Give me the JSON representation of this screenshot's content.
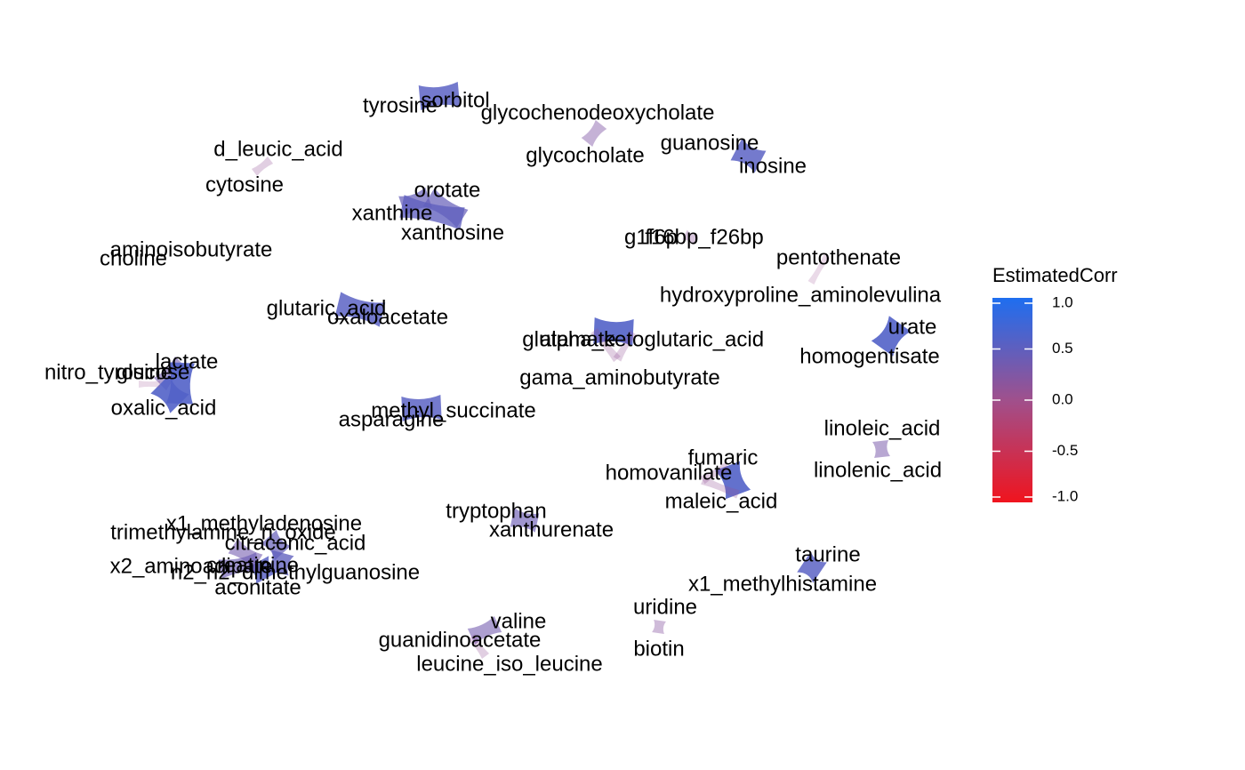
{
  "chart_data": {
    "type": "network",
    "legend": {
      "title": "EstimatedCorr",
      "placement": "right",
      "range": [
        -1.0,
        1.0
      ],
      "ticks": [
        {
          "value": 1.0,
          "label": "1.0"
        },
        {
          "value": 0.5,
          "label": "0.5"
        },
        {
          "value": 0.0,
          "label": "0.0"
        },
        {
          "value": -0.5,
          "label": "-0.5"
        },
        {
          "value": -1.0,
          "label": "-1.0"
        }
      ],
      "colors": {
        "low": "#f0141e",
        "mid": "#a0508c",
        "high": "#1e6ef0"
      }
    },
    "nodes": [
      {
        "id": "tyrosine",
        "label": "tyrosine"
      },
      {
        "id": "sorbitol",
        "label": "sorbitol"
      },
      {
        "id": "glycochenodeoxycholate",
        "label": "glycochenodeoxycholate"
      },
      {
        "id": "glycocholate",
        "label": "glycocholate"
      },
      {
        "id": "guanosine",
        "label": "guanosine"
      },
      {
        "id": "inosine",
        "label": "inosine"
      },
      {
        "id": "d_leucic_acid",
        "label": "d_leucic_acid"
      },
      {
        "id": "cytosine",
        "label": "cytosine"
      },
      {
        "id": "orotate",
        "label": "orotate"
      },
      {
        "id": "xanthine",
        "label": "xanthine"
      },
      {
        "id": "xanthosine",
        "label": "xanthosine"
      },
      {
        "id": "g1f6p",
        "label": "g1f6p"
      },
      {
        "id": "f16bp_f26bp",
        "label": "f16bp_f26bp"
      },
      {
        "id": "pentothenate",
        "label": "pentothenate"
      },
      {
        "id": "aminoisobutyrate",
        "label": "aminoisobutyrate"
      },
      {
        "id": "choline",
        "label": "choline"
      },
      {
        "id": "hydroxyproline_aminolevulina",
        "label": "hydroxyproline_aminolevulina"
      },
      {
        "id": "glutaric_acid",
        "label": "glutaric_acid"
      },
      {
        "id": "oxaloacetate",
        "label": "oxaloacetate"
      },
      {
        "id": "urate",
        "label": "urate"
      },
      {
        "id": "homogentisate",
        "label": "homogentisate"
      },
      {
        "id": "alpha_ketoglutaric_acid",
        "label": "alpha_ketoglutaric_acid"
      },
      {
        "id": "glutamate",
        "label": "glutamate"
      },
      {
        "id": "gama_aminobutyrate",
        "label": "gama_aminobutyrate"
      },
      {
        "id": "lactate",
        "label": "lactate"
      },
      {
        "id": "nitro_tyrosine",
        "label": "nitro_tyrosine"
      },
      {
        "id": "glucose",
        "label": "glucose"
      },
      {
        "id": "oxalic_acid",
        "label": "oxalic_acid"
      },
      {
        "id": "methyl_succinate",
        "label": "methyl_succinate"
      },
      {
        "id": "asparagine",
        "label": "asparagine"
      },
      {
        "id": "linoleic_acid",
        "label": "linoleic_acid"
      },
      {
        "id": "linolenic_acid",
        "label": "linolenic_acid"
      },
      {
        "id": "fumaric",
        "label": "fumaric"
      },
      {
        "id": "homovanilate",
        "label": "homovanilate"
      },
      {
        "id": "maleic_acid",
        "label": "maleic_acid"
      },
      {
        "id": "tryptophan",
        "label": "tryptophan"
      },
      {
        "id": "xanthurenate",
        "label": "xanthurenate"
      },
      {
        "id": "x1_methyladenosine",
        "label": "x1_methyladenosine"
      },
      {
        "id": "trimethylamine_n_oxide",
        "label": "trimethylamine_n_oxide"
      },
      {
        "id": "citraconic_acid",
        "label": "citraconic_acid"
      },
      {
        "id": "creatinine",
        "label": "creatinine"
      },
      {
        "id": "x2_aminoadipate",
        "label": "x2_aminoadipate"
      },
      {
        "id": "n2_n2_dimethylguanosine",
        "label": "n2_n2_dimethylguanosine"
      },
      {
        "id": "aconitate",
        "label": "aconitate"
      },
      {
        "id": "taurine",
        "label": "taurine"
      },
      {
        "id": "x1_methylhistamine",
        "label": "x1_methylhistamine"
      },
      {
        "id": "uridine",
        "label": "uridine"
      },
      {
        "id": "biotin",
        "label": "biotin"
      },
      {
        "id": "valine",
        "label": "valine"
      },
      {
        "id": "guanidinoacetate",
        "label": "guanidinoacetate"
      },
      {
        "id": "leucine_iso_leucine",
        "label": "leucine_iso_leucine"
      }
    ],
    "edges": [
      {
        "source": "tyrosine",
        "target": "sorbitol",
        "corr": 0.55
      },
      {
        "source": "glycochenodeoxycholate",
        "target": "glycocholate",
        "corr": 0.25
      },
      {
        "source": "guanosine",
        "target": "inosine",
        "corr": 0.55
      },
      {
        "source": "d_leucic_acid",
        "target": "cytosine",
        "corr": 0.1
      },
      {
        "source": "orotate",
        "target": "xanthine",
        "corr": 0.45
      },
      {
        "source": "orotate",
        "target": "xanthosine",
        "corr": 0.45
      },
      {
        "source": "xanthine",
        "target": "xanthosine",
        "corr": 0.5
      },
      {
        "source": "g1f6p",
        "target": "f16bp_f26bp",
        "corr": 0.15
      },
      {
        "source": "pentothenate",
        "target": "hydroxyproline_aminolevulina",
        "corr": 0.05
      },
      {
        "source": "glutaric_acid",
        "target": "oxaloacetate",
        "corr": 0.55
      },
      {
        "source": "urate",
        "target": "homogentisate",
        "corr": 0.6
      },
      {
        "source": "alpha_ketoglutaric_acid",
        "target": "glutamate",
        "corr": 0.6
      },
      {
        "source": "alpha_ketoglutaric_acid",
        "target": "gama_aminobutyrate",
        "corr": 0.1
      },
      {
        "source": "glutamate",
        "target": "gama_aminobutyrate",
        "corr": 0.1
      },
      {
        "source": "lactate",
        "target": "glucose",
        "corr": 0.35
      },
      {
        "source": "lactate",
        "target": "oxalic_acid",
        "corr": 0.6
      },
      {
        "source": "glucose",
        "target": "oxalic_acid",
        "corr": 0.6
      },
      {
        "source": "nitro_tyrosine",
        "target": "glucose",
        "corr": 0.05
      },
      {
        "source": "methyl_succinate",
        "target": "asparagine",
        "corr": 0.55
      },
      {
        "source": "linoleic_acid",
        "target": "linolenic_acid",
        "corr": 0.3
      },
      {
        "source": "fumaric",
        "target": "maleic_acid",
        "corr": 0.6
      },
      {
        "source": "fumaric",
        "target": "homovanilate",
        "corr": 0.1
      },
      {
        "source": "homovanilate",
        "target": "maleic_acid",
        "corr": 0.1
      },
      {
        "source": "tryptophan",
        "target": "xanthurenate",
        "corr": 0.4
      },
      {
        "source": "x1_methyladenosine",
        "target": "citraconic_acid",
        "corr": 0.45
      },
      {
        "source": "trimethylamine_n_oxide",
        "target": "creatinine",
        "corr": 0.35
      },
      {
        "source": "creatinine",
        "target": "aconitate",
        "corr": 0.55
      },
      {
        "source": "x2_aminoadipate",
        "target": "creatinine",
        "corr": 0.4
      },
      {
        "source": "citraconic_acid",
        "target": "n2_n2_dimethylguanosine",
        "corr": 0.5
      },
      {
        "source": "taurine",
        "target": "x1_methylhistamine",
        "corr": 0.55
      },
      {
        "source": "uridine",
        "target": "biotin",
        "corr": 0.2
      },
      {
        "source": "valine",
        "target": "guanidinoacetate",
        "corr": 0.35
      },
      {
        "source": "guanidinoacetate",
        "target": "leucine_iso_leucine",
        "corr": 0.1
      }
    ]
  }
}
